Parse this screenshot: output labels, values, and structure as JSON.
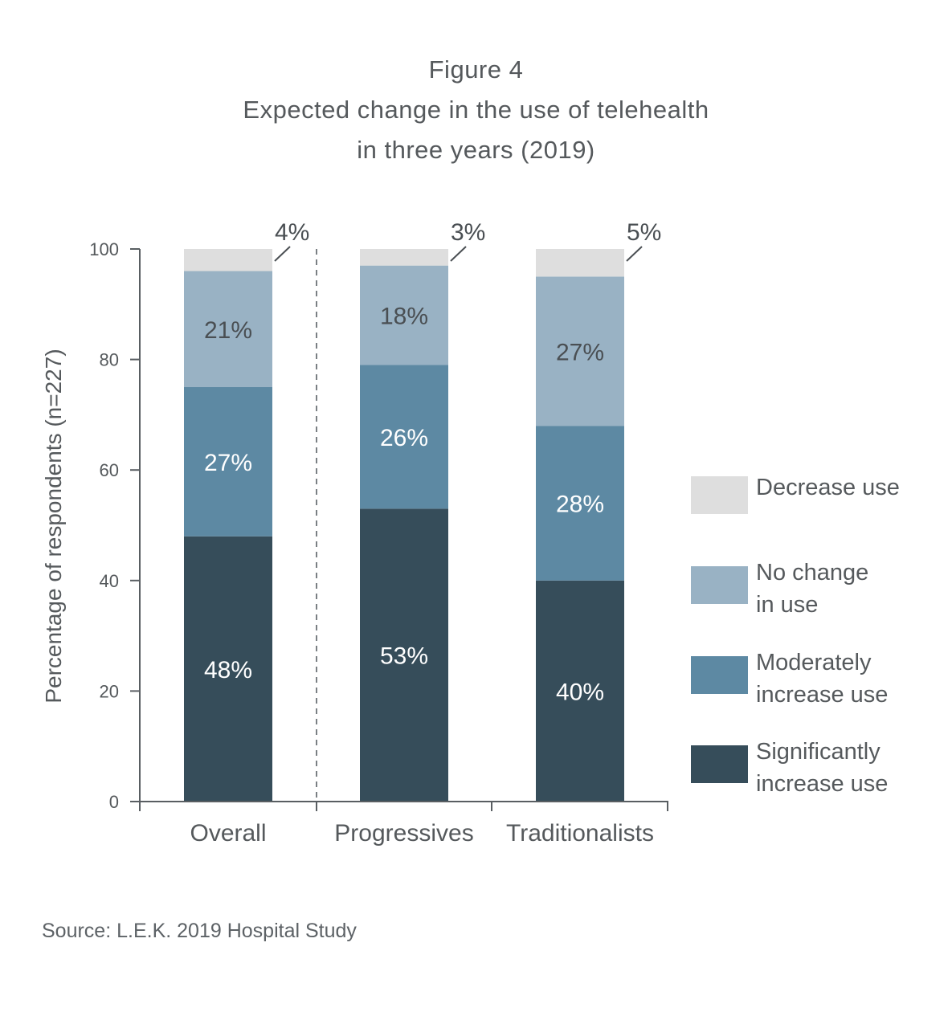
{
  "title": {
    "line1": "Figure 4",
    "line2": "Expected change in the use of telehealth",
    "line3": "in three years (2019)"
  },
  "source": "Source: L.E.K. 2019 Hospital Study",
  "legend": [
    {
      "key": "decrease",
      "line1": "Decrease use",
      "line2": "",
      "color": "#dedede"
    },
    {
      "key": "nochange",
      "line1": "No change",
      "line2": "in use",
      "color": "#99b2c4"
    },
    {
      "key": "moderate",
      "line1": "Moderately",
      "line2": "increase use",
      "color": "#5d89a3"
    },
    {
      "key": "significant",
      "line1": "Significantly",
      "line2": "increase use",
      "color": "#364d5a"
    }
  ],
  "chart_data": {
    "type": "bar",
    "stacked": true,
    "categories": [
      "Overall",
      "Progressives",
      "Traditionalists"
    ],
    "series": [
      {
        "name": "Significantly increase use",
        "values": [
          48,
          53,
          40
        ],
        "labels": [
          "48%",
          "53%",
          "40%"
        ],
        "color": "#364d5a",
        "label_color": "#ffffff"
      },
      {
        "name": "Moderately increase use",
        "values": [
          27,
          26,
          28
        ],
        "labels": [
          "27%",
          "26%",
          "28%"
        ],
        "color": "#5d89a3",
        "label_color": "#ffffff"
      },
      {
        "name": "No change in use",
        "values": [
          21,
          18,
          27
        ],
        "labels": [
          "21%",
          "18%",
          "27%"
        ],
        "color": "#99b2c4",
        "label_color": "#4a4f53"
      },
      {
        "name": "Decrease use",
        "values": [
          4,
          3,
          5
        ],
        "labels": [
          "4%",
          "3%",
          "5%"
        ],
        "color": "#dedede",
        "label_color": "#4a4f53",
        "label_outside": true
      }
    ],
    "ylabel": "Percentage of respondents (n=227)",
    "xlabel": "",
    "ylim": [
      0,
      100
    ],
    "yticks": [
      0,
      20,
      40,
      60,
      80,
      100
    ],
    "grid": false,
    "legend_position": "right"
  }
}
